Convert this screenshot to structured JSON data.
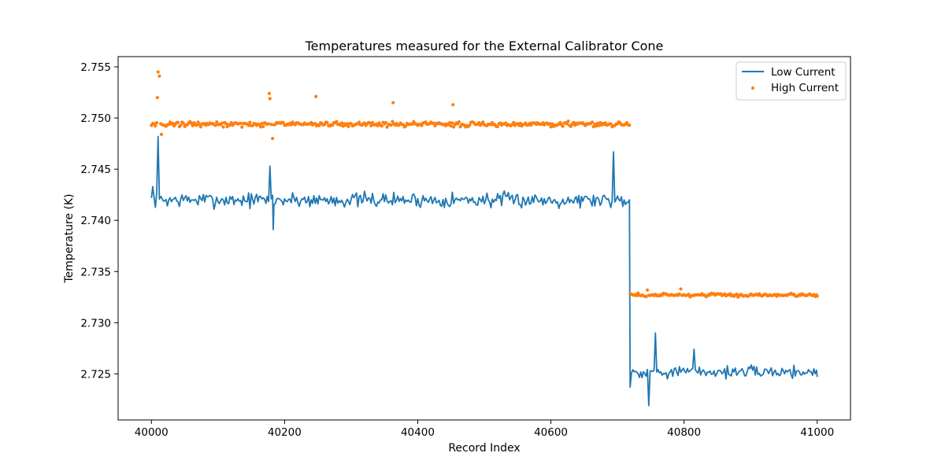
{
  "chart_data": {
    "type": "line",
    "title": "Temperatures measured for the External Calibrator Cone",
    "xlabel": "Record Index",
    "ylabel": "Temperature (K)",
    "xlim": [
      39950,
      41050
    ],
    "ylim": [
      2.7205,
      2.756
    ],
    "x_ticks": [
      40000,
      40200,
      40400,
      40600,
      40800,
      41000
    ],
    "x_tick_labels": [
      "40000",
      "40200",
      "40400",
      "40600",
      "40800",
      "41000"
    ],
    "y_ticks": [
      2.725,
      2.73,
      2.735,
      2.74,
      2.745,
      2.75,
      2.755
    ],
    "y_tick_labels": [
      "2.725",
      "2.730",
      "2.735",
      "2.740",
      "2.745",
      "2.750",
      "2.755"
    ],
    "grid": false,
    "legend": {
      "position": "top-right",
      "entries": [
        "Low Current",
        "High Current"
      ]
    },
    "series": [
      {
        "name": "Low Current",
        "style": "line",
        "color": "#1f77b4",
        "segments": [
          {
            "x_range": [
              40000,
              40718
            ],
            "baseline": 2.742,
            "noise": 0.0009
          },
          {
            "x_range": [
              40719,
              41000
            ],
            "baseline": 2.7252,
            "noise": 0.0007
          }
        ],
        "notable_points": [
          {
            "x": 40002,
            "y": 2.7433
          },
          {
            "x": 40010,
            "y": 2.7482
          },
          {
            "x": 40178,
            "y": 2.7453
          },
          {
            "x": 40183,
            "y": 2.7391
          },
          {
            "x": 40694,
            "y": 2.7467
          },
          {
            "x": 40718,
            "y": 2.742
          },
          {
            "x": 40719,
            "y": 2.7237
          },
          {
            "x": 40747,
            "y": 2.7219
          },
          {
            "x": 40757,
            "y": 2.729
          },
          {
            "x": 40815,
            "y": 2.7274
          },
          {
            "x": 41000,
            "y": 2.7247
          }
        ]
      },
      {
        "name": "High Current",
        "style": "scatter",
        "color": "#ff7f0e",
        "segments": [
          {
            "x_range": [
              40000,
              40718
            ],
            "baseline": 2.7494,
            "noise": 0.0003
          },
          {
            "x_range": [
              40719,
              41000
            ],
            "baseline": 2.7327,
            "noise": 0.0002
          }
        ],
        "notable_points": [
          {
            "x": 40010,
            "y": 2.7545
          },
          {
            "x": 40012,
            "y": 2.7541
          },
          {
            "x": 40009,
            "y": 2.752
          },
          {
            "x": 40015,
            "y": 2.7484
          },
          {
            "x": 40177,
            "y": 2.7524
          },
          {
            "x": 40178,
            "y": 2.7519
          },
          {
            "x": 40182,
            "y": 2.748
          },
          {
            "x": 40247,
            "y": 2.7521
          },
          {
            "x": 40363,
            "y": 2.7515
          },
          {
            "x": 40453,
            "y": 2.7513
          },
          {
            "x": 40745,
            "y": 2.7332
          },
          {
            "x": 40795,
            "y": 2.7333
          },
          {
            "x": 41000,
            "y": 2.7326
          }
        ]
      }
    ]
  }
}
